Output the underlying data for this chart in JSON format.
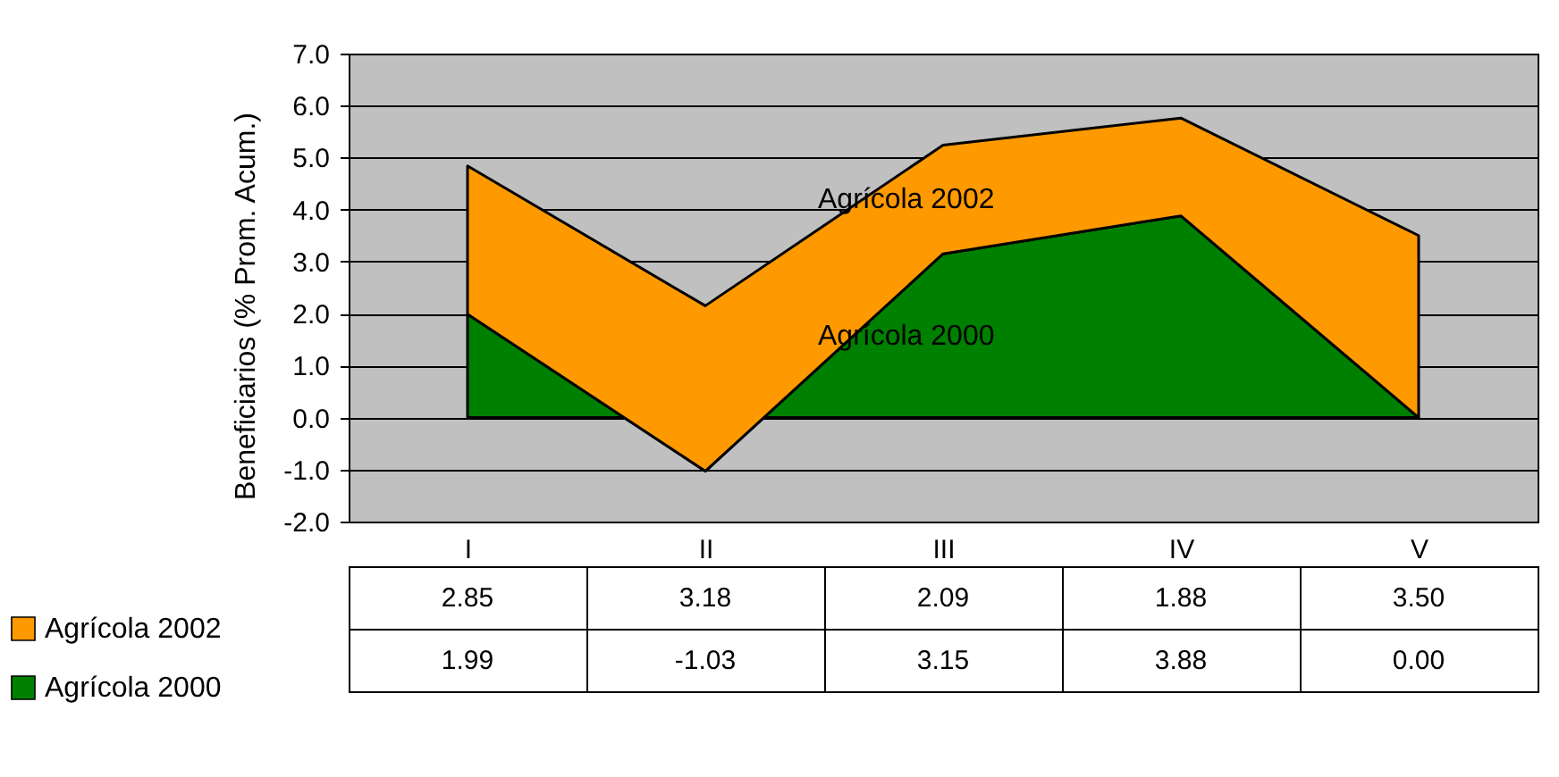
{
  "chart_data": {
    "type": "area",
    "stacked": true,
    "ylabel": "Beneficiarios (% Prom. Acum.)",
    "categories": [
      "I",
      "II",
      "III",
      "IV",
      "V"
    ],
    "series": [
      {
        "name": "Agrícola 2000",
        "color": "#008000",
        "values": [
          1.99,
          -1.03,
          3.15,
          3.88,
          0.0
        ],
        "value_labels": [
          "1.99",
          "-1.03",
          "3.15",
          "3.88",
          "0.00"
        ]
      },
      {
        "name": "Agrícola 2002",
        "color": "#ff9900",
        "values": [
          2.85,
          3.18,
          2.09,
          1.88,
          3.5
        ],
        "value_labels": [
          "2.85",
          "3.18",
          "2.09",
          "1.88",
          "3.50"
        ]
      }
    ],
    "ylim": [
      -2,
      7
    ],
    "yticks": [
      {
        "value": -2,
        "label": "-2.0"
      },
      {
        "value": -1,
        "label": "-1.0"
      },
      {
        "value": 0,
        "label": "0.0"
      },
      {
        "value": 1,
        "label": "1.0"
      },
      {
        "value": 2,
        "label": "2.0"
      },
      {
        "value": 3,
        "label": "3.0"
      },
      {
        "value": 4,
        "label": "4.0"
      },
      {
        "value": 5,
        "label": "5.0"
      },
      {
        "value": 6,
        "label": "6.0"
      },
      {
        "value": 7,
        "label": "7.0"
      }
    ],
    "grid": "y",
    "legend": "bottom left"
  }
}
